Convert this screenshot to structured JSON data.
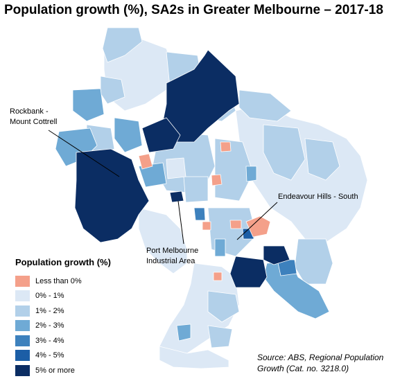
{
  "title": "Population growth (%), SA2s in Greater Melbourne – 2017-18",
  "legend": {
    "title": "Population growth (%)",
    "items": [
      {
        "label": "Less than 0%",
        "color": "#f4a08a"
      },
      {
        "label": "0% - 1%",
        "color": "#dce8f5"
      },
      {
        "label": "1% - 2%",
        "color": "#b2d0e9"
      },
      {
        "label": "2% - 3%",
        "color": "#6faad5"
      },
      {
        "label": "3% - 4%",
        "color": "#3d81bd"
      },
      {
        "label": "4% - 5%",
        "color": "#1c5ea6"
      },
      {
        "label": "5% or more",
        "color": "#0b2d63"
      }
    ]
  },
  "annotations": {
    "rockbank_line1": "Rockbank -",
    "rockbank_line2": "Mount Cottrell",
    "port_line1": "Port Melbourne",
    "port_line2": "Industrial Area",
    "endeavour": "Endeavour Hills - South"
  },
  "source": {
    "line1": "Source:  ABS, Regional Population",
    "line2": "Growth (Cat. no. 3218.0)"
  }
}
